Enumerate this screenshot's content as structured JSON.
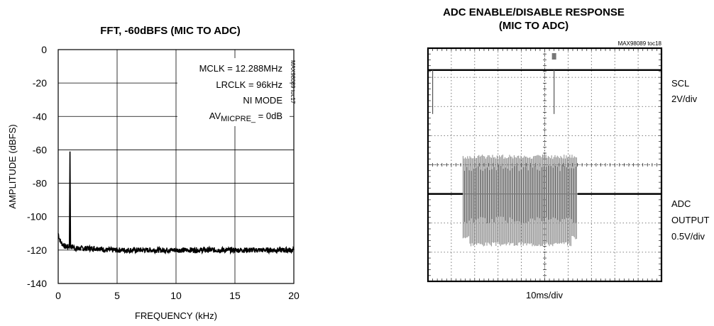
{
  "chart_data": [
    {
      "type": "line",
      "title": "FFT, -60dBFS (MIC TO ADC)",
      "xlabel": "FREQUENCY (kHz)",
      "ylabel": "AMPLITUDE (dBFS)",
      "xlim": [
        0,
        20
      ],
      "ylim": [
        -140,
        0
      ],
      "xticks": [
        "0",
        "5",
        "10",
        "15",
        "20"
      ],
      "yticks": [
        "0",
        "-20",
        "-40",
        "-60",
        "-80",
        "-100",
        "-120",
        "-140"
      ],
      "grid": true,
      "annotations": {
        "mclk": "MCLK = 12.288MHz",
        "lrclk": "LRCLK = 96kHz",
        "mode": "NI MODE",
        "av_prefix": "AV",
        "av_sub": "MICPRE_",
        "av_suffix": " = 0dB",
        "tag": "MAX98089 toc17"
      },
      "series": [
        {
          "values": [
            [
              0.0,
              -110
            ],
            [
              0.1,
              -113
            ],
            [
              0.2,
              -115
            ],
            [
              0.3,
              -116
            ],
            [
              0.45,
              -117
            ],
            [
              0.6,
              -118
            ],
            [
              0.8,
              -118
            ],
            [
              0.95,
              -118
            ],
            [
              1.0,
              -61
            ],
            [
              1.05,
              -118
            ],
            [
              1.2,
              -118
            ],
            [
              1.5,
              -119
            ],
            [
              2,
              -119
            ],
            [
              2.5,
              -119
            ],
            [
              3,
              -119
            ],
            [
              3.5,
              -119
            ],
            [
              4,
              -120
            ],
            [
              5,
              -120
            ],
            [
              6,
              -120
            ],
            [
              7,
              -120
            ],
            [
              8,
              -120
            ],
            [
              9,
              -120
            ],
            [
              10,
              -120
            ],
            [
              11,
              -120
            ],
            [
              12,
              -120
            ],
            [
              13,
              -120
            ],
            [
              14,
              -120
            ],
            [
              15,
              -120
            ],
            [
              16,
              -120
            ],
            [
              17,
              -120
            ],
            [
              18,
              -120
            ],
            [
              19,
              -120
            ],
            [
              20,
              -120
            ]
          ]
        }
      ]
    },
    {
      "type": "line",
      "title_line1": "ADC ENABLE/DISABLE RESPONSE",
      "title_line2": "(MIC TO ADC)",
      "xlabel": "10ms/div",
      "tag": "MAX98089 toc18",
      "divisions": {
        "x": 10,
        "y": 8
      },
      "grid": true,
      "channels": [
        {
          "label_lines": [
            "SCL",
            "2V/div"
          ]
        },
        {
          "label_lines": [
            "ADC",
            "OUTPUT",
            "0.5V/div"
          ]
        }
      ],
      "scl_trace": {
        "baseline_div": 0.75,
        "spikes_div": [
          0.2,
          5.4
        ],
        "marker_div": 5.4
      },
      "adc_trace": {
        "baseline_div": 5.0,
        "burst_start_div": 1.5,
        "burst_end_div": 6.4,
        "peak_top_div": 3.65,
        "peak_bottom_div": 6.8
      }
    }
  ]
}
